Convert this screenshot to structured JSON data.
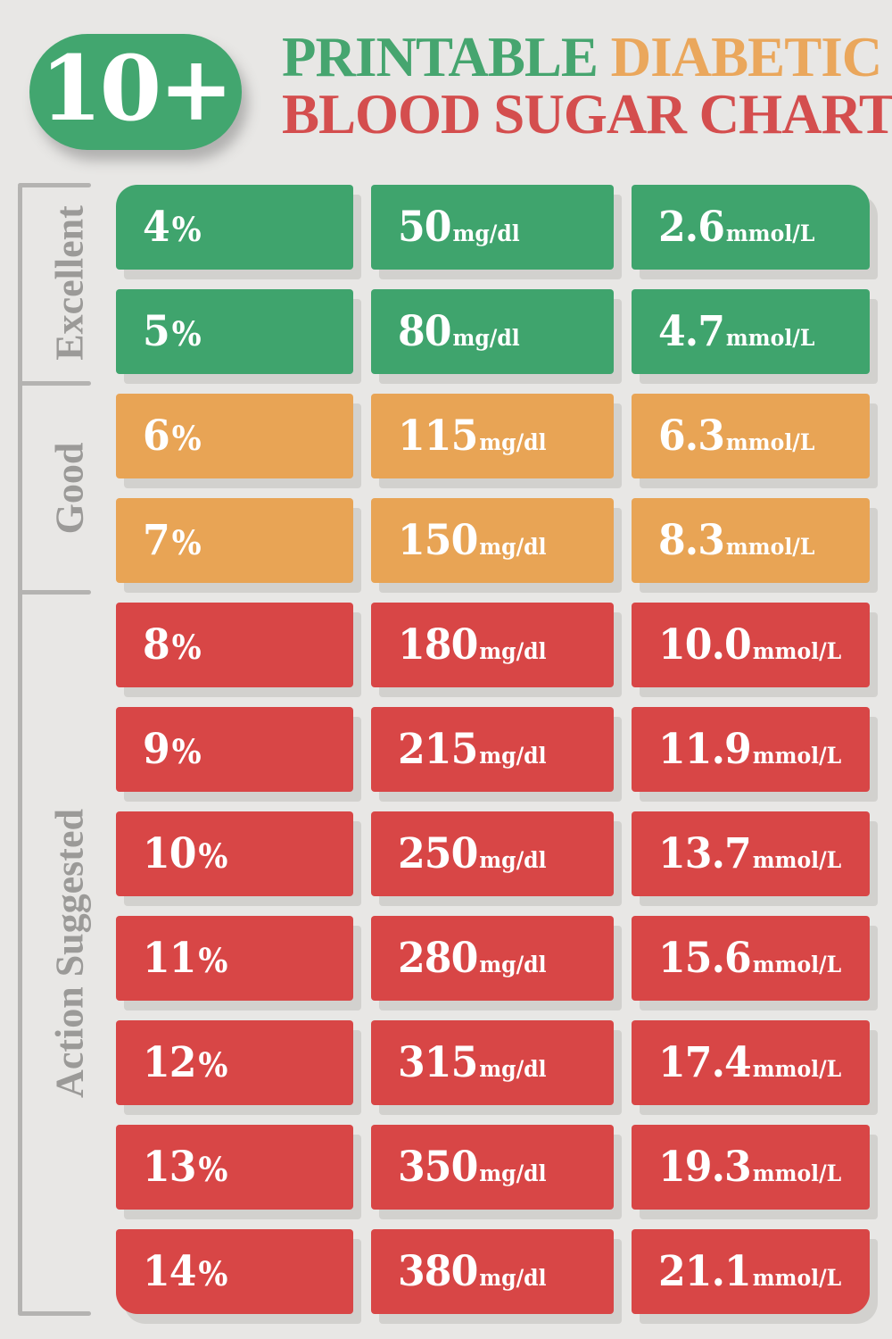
{
  "header": {
    "badge": "10+",
    "title_word1": "PRINTABLE",
    "title_word2": "DIABETIC",
    "title_line2": "BLOOD SUGAR CHART"
  },
  "palette": {
    "green": "#3fa46d",
    "orange": "#e8a455",
    "red": "#d84646",
    "badge_green": "#42a66f",
    "title_green": "#46a56f",
    "title_orange": "#eaa75c",
    "title_red": "#d44e4e",
    "label_gray": "#9b9a98",
    "bracket_gray": "#b4b3b1",
    "background": "#e8e7e5",
    "cell_shadow": "#d2d1ce",
    "cell_text": "#ffffff"
  },
  "units": {
    "percent": "%",
    "mgdl": "mg/dl",
    "mmol": "mmol/L"
  },
  "sections": [
    {
      "label": "Excellent",
      "color_key": "green",
      "rows": [
        {
          "a1c": "4",
          "mgdl": "50",
          "mmol": "2.6"
        },
        {
          "a1c": "5",
          "mgdl": "80",
          "mmol": "4.7"
        }
      ]
    },
    {
      "label": "Good",
      "color_key": "orange",
      "rows": [
        {
          "a1c": "6",
          "mgdl": "115",
          "mmol": "6.3"
        },
        {
          "a1c": "7",
          "mgdl": "150",
          "mmol": "8.3"
        }
      ]
    },
    {
      "label": "Action Suggested",
      "color_key": "red",
      "rows": [
        {
          "a1c": "8",
          "mgdl": "180",
          "mmol": "10.0"
        },
        {
          "a1c": "9",
          "mgdl": "215",
          "mmol": "11.9"
        },
        {
          "a1c": "10",
          "mgdl": "250",
          "mmol": "13.7"
        },
        {
          "a1c": "11",
          "mgdl": "280",
          "mmol": "15.6"
        },
        {
          "a1c": "12",
          "mgdl": "315",
          "mmol": "17.4"
        },
        {
          "a1c": "13",
          "mgdl": "350",
          "mmol": "19.3"
        },
        {
          "a1c": "14",
          "mgdl": "380",
          "mmol": "21.1"
        }
      ]
    }
  ],
  "chart_data": {
    "type": "table",
    "title": "10+ Printable Diabetic Blood Sugar Chart",
    "columns": [
      "%",
      "mg/dl",
      "mmol/L"
    ],
    "row_categories": [
      "Excellent",
      "Excellent",
      "Good",
      "Good",
      "Action Suggested",
      "Action Suggested",
      "Action Suggested",
      "Action Suggested",
      "Action Suggested",
      "Action Suggested",
      "Action Suggested"
    ],
    "rows": [
      [
        4,
        50,
        2.6
      ],
      [
        5,
        80,
        4.7
      ],
      [
        6,
        115,
        6.3
      ],
      [
        7,
        150,
        8.3
      ],
      [
        8,
        180,
        10.0
      ],
      [
        9,
        215,
        11.9
      ],
      [
        10,
        250,
        13.7
      ],
      [
        11,
        280,
        15.6
      ],
      [
        12,
        315,
        17.4
      ],
      [
        13,
        350,
        19.3
      ],
      [
        14,
        380,
        21.1
      ]
    ]
  }
}
